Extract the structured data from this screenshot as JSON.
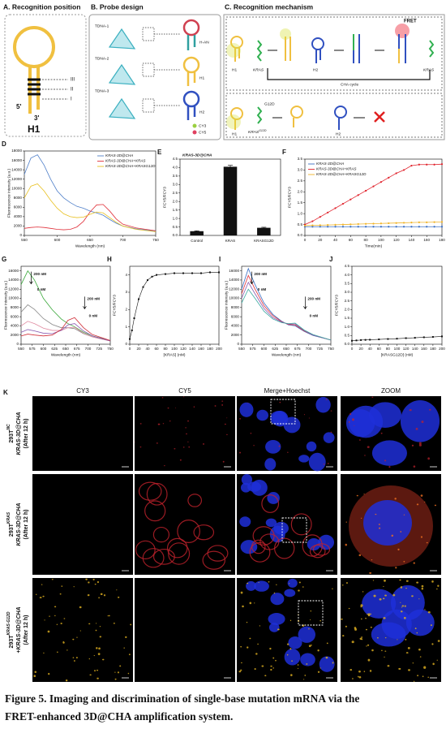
{
  "panel_a": {
    "label": "A. Recognition position",
    "sites": [
      "III",
      "II",
      "I"
    ],
    "end5": "5'",
    "end3": "3'",
    "hairpin": "H1"
  },
  "panel_b": {
    "label": "B. Probe design",
    "probes": [
      "TDNA-1",
      "TDNA-2",
      "TDNA-3"
    ],
    "hairpins": [
      "H-AN",
      "H1",
      "H2"
    ],
    "dyes": [
      "CY3",
      "CY5"
    ]
  },
  "panel_c": {
    "label": "C. Recognition mechanism",
    "fret": "FRET",
    "cycle": "CHA cycle",
    "top_labels": [
      "H1",
      "KRAS",
      "H2",
      "KRAS"
    ],
    "bottom_labels": [
      "H1",
      "G12D",
      "H2"
    ],
    "bottom_target": {
      "name": "KRAS",
      "sup": "G12D"
    }
  },
  "chart_data": [
    {
      "type": "line",
      "panel": "D",
      "xlabel": "Wavelength (nm)",
      "ylabel": "Fluorescence intensity (a.u.)",
      "x": [
        550,
        560,
        570,
        580,
        590,
        600,
        610,
        620,
        630,
        640,
        650,
        660,
        670,
        680,
        690,
        700,
        720,
        750
      ],
      "series": [
        {
          "name": "KRAS-3D@CHA",
          "color": "#4f7fc9",
          "values": [
            13000,
            16500,
            17200,
            15000,
            12000,
            9500,
            8000,
            7000,
            6200,
            5800,
            5200,
            4800,
            4300,
            3400,
            2600,
            2000,
            1400,
            900
          ]
        },
        {
          "name": "KRAS-3D@CHA+KRAS",
          "color": "#e0303a",
          "values": [
            1500,
            1700,
            1800,
            1700,
            1500,
            1300,
            1200,
            1300,
            1800,
            3000,
            5000,
            6500,
            6600,
            5200,
            3500,
            2400,
            1600,
            1000
          ]
        },
        {
          "name": "KRAS-3D@CHA+KRASG12D",
          "color": "#e8c020",
          "values": [
            8000,
            10500,
            11000,
            9500,
            7500,
            5800,
            4600,
            4000,
            3800,
            3900,
            4500,
            5000,
            4800,
            3800,
            2800,
            2000,
            1300,
            800
          ]
        }
      ],
      "xlim": [
        550,
        750
      ],
      "xticks": [
        550,
        600,
        650,
        700,
        750
      ],
      "ylim": [
        0,
        18000
      ],
      "yticks": [
        0,
        2000,
        4000,
        6000,
        8000,
        10000,
        12000,
        14000,
        16000,
        18000
      ],
      "legend": "upper right"
    },
    {
      "type": "bar",
      "panel": "E",
      "title": "KRAS-3D@CHA",
      "ylabel": "FCY5/FCY3",
      "categories": [
        "Control",
        "KRAS",
        "KRASG12D"
      ],
      "values": [
        0.25,
        4.05,
        0.45
      ],
      "errors": [
        0.02,
        0.08,
        0.03
      ],
      "color": "#111111",
      "ylim": [
        0,
        4.5
      ],
      "yticks": [
        {
          "value": 0,
          "label": "0.0"
        },
        0.5,
        {
          "value": 1,
          "label": "1.0"
        },
        1.5,
        {
          "value": 2,
          "label": "2.0"
        },
        2.5,
        {
          "value": 3,
          "label": "3.0"
        },
        3.5,
        {
          "value": 4,
          "label": "4.0"
        },
        4.5
      ]
    },
    {
      "type": "line",
      "panel": "F",
      "xlabel": "Time(min)",
      "ylabel": "FCY5/FCY3",
      "markers": true,
      "x": [
        0,
        10,
        20,
        30,
        40,
        50,
        60,
        70,
        80,
        90,
        100,
        110,
        120,
        130,
        140,
        150,
        160,
        170,
        180
      ],
      "series": [
        {
          "name": "KRAS-3D@CHA",
          "color": "#3a6fc4",
          "values": [
            0.4,
            0.4,
            0.4,
            0.4,
            0.4,
            0.4,
            0.4,
            0.4,
            0.4,
            0.4,
            0.4,
            0.4,
            0.4,
            0.4,
            0.4,
            0.4,
            0.4,
            0.4,
            0.4
          ]
        },
        {
          "name": "KRAS-3D@CHA+KRAS",
          "color": "#e0202a",
          "values": [
            0.5,
            0.65,
            0.85,
            1.05,
            1.25,
            1.45,
            1.65,
            1.85,
            2.05,
            2.25,
            2.45,
            2.65,
            2.85,
            3.0,
            3.2,
            3.25,
            3.25,
            3.25,
            3.27
          ]
        },
        {
          "name": "KRAS-3D@CHA+KRASG12D",
          "color": "#f0b429",
          "values": [
            0.45,
            0.46,
            0.47,
            0.48,
            0.49,
            0.5,
            0.51,
            0.52,
            0.53,
            0.54,
            0.55,
            0.56,
            0.57,
            0.58,
            0.59,
            0.6,
            0.6,
            0.61,
            0.62
          ]
        }
      ],
      "xlim": [
        0,
        180
      ],
      "xticks": [
        0,
        20,
        40,
        60,
        80,
        100,
        120,
        140,
        160,
        180
      ],
      "ylim": [
        0,
        3.5
      ],
      "yticks": [
        {
          "value": 0,
          "label": "0.0"
        },
        0.5,
        {
          "value": 1,
          "label": "1.0"
        },
        1.5,
        {
          "value": 2,
          "label": "2.0"
        },
        2.5,
        {
          "value": 3,
          "label": "3.0"
        },
        3.5
      ],
      "legend": "upper left"
    },
    {
      "type": "line",
      "panel": "G",
      "xlabel": "Wavelength (nm)",
      "ylabel": "Fluorescence intensity (a.u.)",
      "annotations": [
        "200 nM",
        "0 nM",
        "200 nM",
        "0 nM"
      ],
      "x": [
        550,
        565,
        580,
        600,
        620,
        640,
        655,
        670,
        690,
        710,
        750
      ],
      "series": [
        {
          "color": "#3aa83a",
          "values": [
            13000,
            16000,
            14000,
            10000,
            7500,
            5500,
            4500,
            3800,
            2600,
            1800,
            800
          ]
        },
        {
          "color": "#888888",
          "values": [
            7000,
            8600,
            7600,
            5600,
            4300,
            3600,
            3600,
            3400,
            2300,
            1600,
            700
          ]
        },
        {
          "color": "#e08aa0",
          "values": [
            4000,
            5000,
            4500,
            3500,
            3000,
            3000,
            3600,
            3700,
            2400,
            1600,
            700
          ]
        },
        {
          "color": "#8a5ab0",
          "values": [
            2600,
            3200,
            2900,
            2400,
            2300,
            3000,
            4200,
            4500,
            2900,
            1800,
            700
          ]
        },
        {
          "color": "#d0303a",
          "values": [
            1800,
            2200,
            2000,
            1800,
            2000,
            3200,
            5200,
            5800,
            3600,
            2100,
            800
          ]
        }
      ],
      "xlim": [
        550,
        750
      ],
      "xticks": [
        550,
        575,
        600,
        625,
        650,
        675,
        700,
        725,
        750
      ],
      "ylim": [
        0,
        17000
      ],
      "yticks": [
        0,
        2000,
        4000,
        6000,
        8000,
        10000,
        12000,
        14000,
        16000
      ]
    },
    {
      "type": "scatter",
      "panel": "H",
      "xlabel": "[KRAS] (nM)",
      "ylabel": "FCY5/FCY3",
      "line": true,
      "color": "#111111",
      "x": [
        0,
        5,
        10,
        20,
        30,
        40,
        50,
        60,
        80,
        100,
        120,
        140,
        160,
        180,
        200
      ],
      "values": [
        0.3,
        0.8,
        1.5,
        2.6,
        3.3,
        3.7,
        3.9,
        4.0,
        4.05,
        4.1,
        4.1,
        4.1,
        4.1,
        4.15,
        4.15
      ],
      "xlim": [
        0,
        200
      ],
      "xticks": [
        0,
        20,
        40,
        60,
        80,
        100,
        120,
        140,
        160,
        180,
        200
      ],
      "ylim": [
        0,
        4.5
      ],
      "yticks": [
        0,
        1,
        2,
        3,
        4
      ]
    },
    {
      "type": "line",
      "panel": "I",
      "xlabel": "Wavelength (nm)",
      "ylabel": "Fluorescence intensity (a.u.)",
      "annotations": [
        "200 nM",
        "0 nM",
        "200 nM",
        "0 nM"
      ],
      "x": [
        550,
        565,
        580,
        600,
        620,
        640,
        655,
        670,
        690,
        710,
        750
      ],
      "series": [
        {
          "color": "#3a6fc4",
          "values": [
            12000,
            16500,
            13000,
            9000,
            6500,
            5000,
            4200,
            4000,
            2800,
            1900,
            900
          ]
        },
        {
          "color": "#e0303a",
          "values": [
            11000,
            15000,
            12000,
            8400,
            6200,
            4900,
            4300,
            4200,
            2900,
            2000,
            900
          ]
        },
        {
          "color": "#8a5ab0",
          "values": [
            10000,
            13500,
            11000,
            7800,
            5800,
            4800,
            4400,
            4400,
            3000,
            2000,
            900
          ]
        },
        {
          "color": "#3aa8a0",
          "values": [
            9000,
            12000,
            10000,
            7200,
            5500,
            4700,
            4500,
            4600,
            3100,
            2100,
            900
          ]
        }
      ],
      "xlim": [
        550,
        750
      ],
      "xticks": [
        550,
        575,
        600,
        625,
        650,
        675,
        700,
        725,
        750
      ],
      "ylim": [
        0,
        17000
      ],
      "yticks": [
        0,
        2000,
        4000,
        6000,
        8000,
        10000,
        12000,
        14000,
        16000
      ]
    },
    {
      "type": "scatter",
      "panel": "J",
      "xlabel": "[KRASG12D] (nM)",
      "ylabel": "FCY5/FCY3",
      "line": true,
      "color": "#111111",
      "x": [
        0,
        10,
        20,
        30,
        40,
        60,
        80,
        100,
        120,
        140,
        160,
        180,
        200
      ],
      "values": [
        0.2,
        0.22,
        0.24,
        0.25,
        0.26,
        0.28,
        0.3,
        0.32,
        0.35,
        0.37,
        0.4,
        0.42,
        0.45
      ],
      "xlim": [
        0,
        200
      ],
      "xticks": [
        0,
        20,
        40,
        60,
        80,
        100,
        120,
        140,
        160,
        180,
        200
      ],
      "ylim": [
        0,
        4.5
      ],
      "yticks": [
        {
          "value": 0,
          "label": "0.0"
        },
        0.5,
        {
          "value": 1,
          "label": "1.0"
        },
        1.5,
        {
          "value": 2,
          "label": "2.0"
        },
        2.5,
        {
          "value": 3,
          "label": "3.0"
        },
        3.5,
        {
          "value": 4,
          "label": "4.0"
        },
        4.5
      ]
    }
  ],
  "panel_k": {
    "label": "K",
    "columns": [
      "CY3",
      "CY5",
      "Merge+Hoechst",
      "ZOOM"
    ],
    "rows": [
      {
        "cell": {
          "name": "293T",
          "sup": "NC"
        },
        "probe": "KRAS-3D@CHA",
        "time": "(After 12 h)"
      },
      {
        "cell": {
          "name": "293T",
          "sup": "KRAS"
        },
        "probe": "KRAS-3D@CHA",
        "time": "(After 12 h)"
      },
      {
        "cell": {
          "name": "293T",
          "sup": "KRAS-G12D"
        },
        "plus": "+",
        "probe": "KRAS-3D@CHA",
        "time": "(After 12 h)"
      }
    ]
  },
  "caption": [
    "Figure 5. Imaging and discrimination of single-base mutation mRNA via the",
    "FRET-enhanced 3D@CHA amplification system."
  ]
}
